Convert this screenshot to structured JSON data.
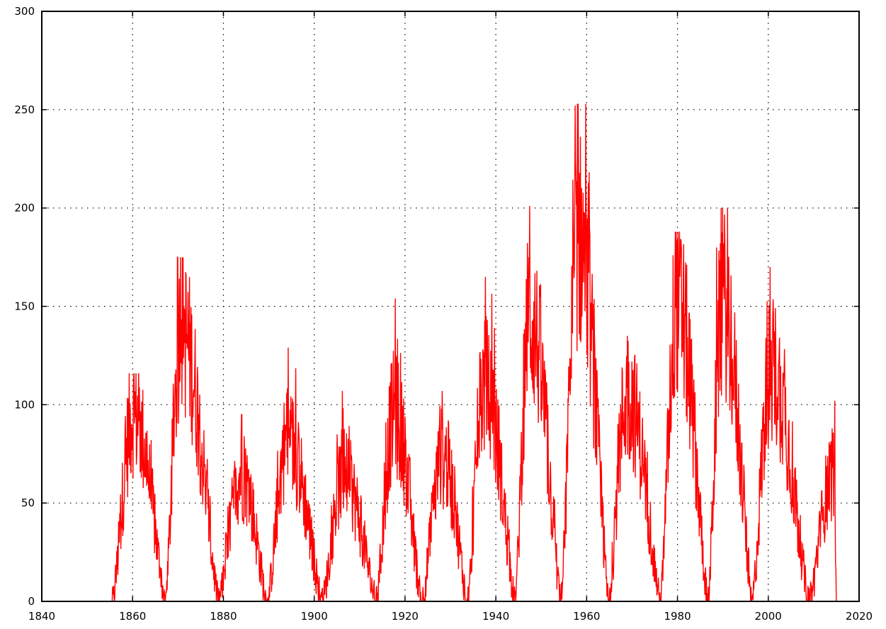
{
  "chart_data": {
    "type": "line",
    "title": "",
    "xlabel": "",
    "ylabel": "",
    "xlim": [
      1840,
      2020
    ],
    "ylim": [
      0,
      300
    ],
    "grid": true,
    "legend": "none",
    "x_ticks": [
      1840,
      1860,
      1880,
      1900,
      1920,
      1940,
      1960,
      1980,
      2000,
      2020
    ],
    "y_ticks": [
      0,
      50,
      100,
      150,
      200,
      250,
      300
    ],
    "x_tick_labels": [
      "1840",
      "1860",
      "1880",
      "1900",
      "1920",
      "1940",
      "1960",
      "1980",
      "2000",
      "2020"
    ],
    "y_tick_labels": [
      "0",
      "50",
      "100",
      "150",
      "200",
      "250",
      "300"
    ],
    "line_color": "#ff0000",
    "series": [
      {
        "cycles": [
          {
            "start": 1855.5,
            "max": 1860.2,
            "end": 1867.2,
            "peak_mean": 95,
            "spike": 116
          },
          {
            "start": 1867.2,
            "max": 1870.6,
            "end": 1878.9,
            "peak_mean": 138,
            "spike": 175
          },
          {
            "start": 1878.9,
            "max": 1883.9,
            "end": 1889.6,
            "peak_mean": 64,
            "spike": 95
          },
          {
            "start": 1889.6,
            "max": 1894.1,
            "end": 1901.7,
            "peak_mean": 82,
            "spike": 129
          },
          {
            "start": 1901.7,
            "max": 1906.4,
            "end": 1913.6,
            "peak_mean": 64,
            "spike": 107
          },
          {
            "start": 1913.6,
            "max": 1917.6,
            "end": 1923.6,
            "peak_mean": 95,
            "spike": 154
          },
          {
            "start": 1923.6,
            "max": 1928.3,
            "end": 1933.7,
            "peak_mean": 73,
            "spike": 107
          },
          {
            "start": 1933.7,
            "max": 1937.4,
            "end": 1944.2,
            "peak_mean": 110,
            "spike": 165
          },
          {
            "start": 1944.2,
            "max": 1947.4,
            "end": 1954.3,
            "peak_mean": 145,
            "spike": 201
          },
          {
            "start": 1954.3,
            "max": 1958.2,
            "end": 1964.8,
            "peak_mean": 185,
            "spike": 253
          },
          {
            "start": 1964.8,
            "max": 1968.9,
            "end": 1976.2,
            "peak_mean": 105,
            "spike": 135
          },
          {
            "start": 1976.2,
            "max": 1979.9,
            "end": 1986.7,
            "peak_mean": 152,
            "spike": 188
          },
          {
            "start": 1986.7,
            "max": 1989.9,
            "end": 1996.4,
            "peak_mean": 152,
            "spike": 200
          },
          {
            "start": 1996.4,
            "max": 2000.6,
            "end": 2008.9,
            "peak_mean": 118,
            "spike": 170
          },
          {
            "start": 2008.9,
            "max": 2014.3,
            "end": 2015.0,
            "peak_mean": 65,
            "spike": 102
          }
        ]
      }
    ]
  }
}
